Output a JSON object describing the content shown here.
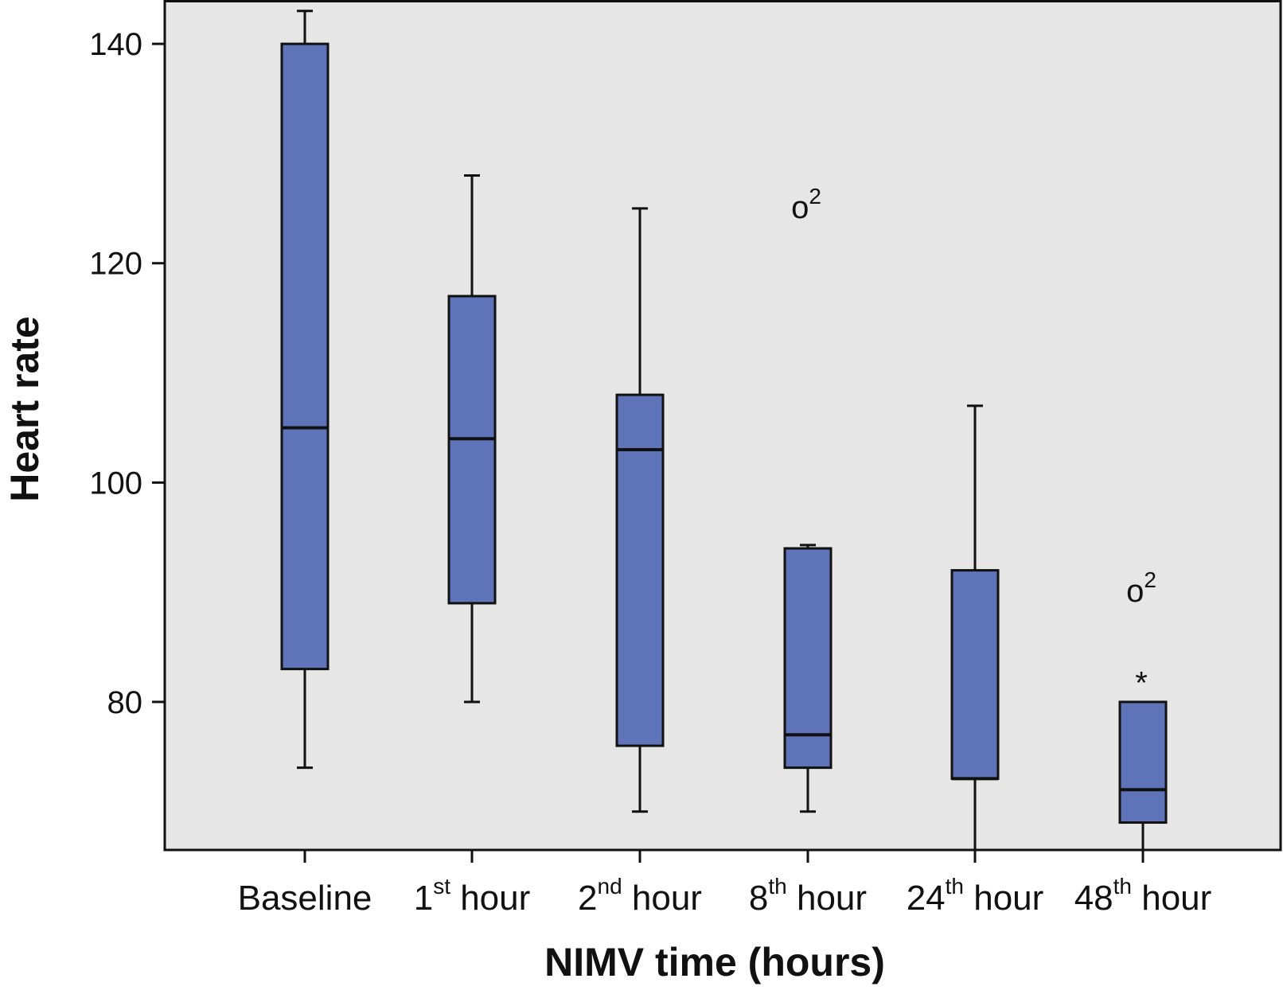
{
  "chart_data": {
    "type": "boxplot",
    "xlabel": "NIMV time (hours)",
    "ylabel": "Heart rate",
    "ylim": [
      66.5,
      144
    ],
    "yticks": [
      80,
      100,
      120,
      140
    ],
    "categories": [
      {
        "base": "Baseline",
        "sup": "",
        "rest": ""
      },
      {
        "base": "1",
        "sup": "st",
        "rest": " hour"
      },
      {
        "base": "2",
        "sup": "nd",
        "rest": " hour"
      },
      {
        "base": "8",
        "sup": "th",
        "rest": " hour"
      },
      {
        "base": "24",
        "sup": "th",
        "rest": " hour"
      },
      {
        "base": "48",
        "sup": "th",
        "rest": " hour"
      }
    ],
    "boxes": [
      {
        "whisker_low": 74,
        "q1": 83,
        "median": 105,
        "q3": 140,
        "whisker_high": 143
      },
      {
        "whisker_low": 80,
        "q1": 89,
        "median": 104,
        "q3": 117,
        "whisker_high": 128
      },
      {
        "whisker_low": 70,
        "q1": 76,
        "median": 103,
        "q3": 108,
        "whisker_high": 125
      },
      {
        "whisker_low": 70,
        "q1": 74,
        "median": 77,
        "q3": 94,
        "whisker_high": 94.3
      },
      {
        "whisker_low": 66.5,
        "q1": 73,
        "median": 73,
        "q3": 92,
        "whisker_high": 107
      },
      {
        "whisker_low": 66.5,
        "q1": 69,
        "median": 72,
        "q3": 80,
        "whisker_high": 80
      }
    ],
    "outliers": [
      {
        "category_index": 3,
        "y": 125,
        "marker": "o",
        "label": "2"
      },
      {
        "category_index": 5,
        "y": 90,
        "marker": "o",
        "label": "2"
      },
      {
        "category_index": 5,
        "y": 82.5,
        "marker": "*",
        "label": ""
      }
    ],
    "grid": false,
    "colors": {
      "plot_background": "#e6e6e6",
      "box_fill": "#5e73b8",
      "line": "#111111"
    }
  }
}
